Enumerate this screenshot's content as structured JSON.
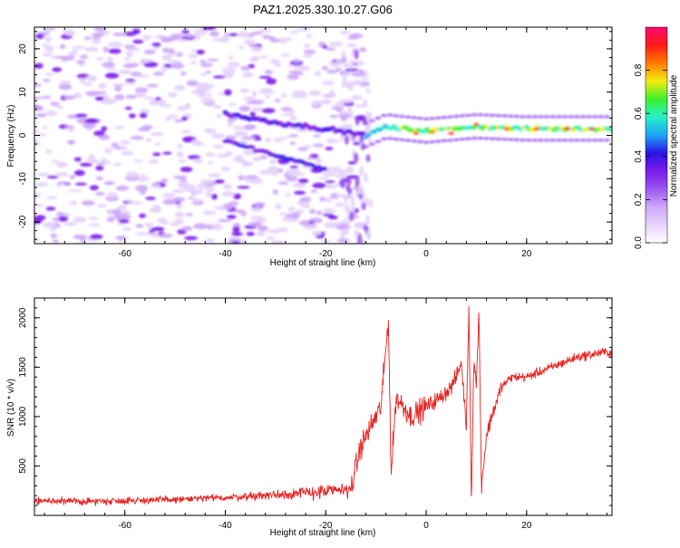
{
  "title": "PAZ1.2025.330.10.27.G06",
  "colors": {
    "snr_line": "#e8201e",
    "axis": "#000000",
    "colormap": [
      "#ffffff",
      "#e6d2fb",
      "#cda7f7",
      "#9b55f0",
      "#7a1aea",
      "#2a14e6",
      "#1ea6f5",
      "#26f0c8",
      "#3ff02b",
      "#f5ec12",
      "#ff7a00",
      "#ff1a1a",
      "#ff0a6e"
    ]
  },
  "chart_data": [
    {
      "type": "heatmap",
      "title": "",
      "xlabel": "Height of straight line (km)",
      "ylabel": "Frequency (Hz)",
      "xlim": [
        -78,
        37
      ],
      "ylim": [
        -25,
        25
      ],
      "x_ticks": [
        -60,
        -40,
        -20,
        0,
        20
      ],
      "y_ticks": [
        -20,
        -10,
        0,
        10,
        20
      ],
      "colorbar": {
        "label": "Normalized spectral amplitude",
        "range": [
          0,
          1
        ],
        "ticks": [
          "0.0",
          "0.2",
          "0.4",
          "0.6",
          "0.8"
        ]
      },
      "features": [
        {
          "name": "noise region",
          "x_range": [
            -78,
            -12
          ],
          "freq_range": [
            -25,
            25
          ],
          "amplitude": 0.15
        },
        {
          "name": "main branch",
          "points": [
            [
              -40,
              5
            ],
            [
              -30,
              3
            ],
            [
              -20,
              1.5
            ],
            [
              -12,
              0
            ],
            [
              -8,
              2
            ],
            [
              0,
              1
            ],
            [
              10,
              2
            ],
            [
              20,
              1.5
            ],
            [
              37,
              1.5
            ]
          ]
        },
        {
          "name": "secondary branch",
          "points": [
            [
              -40,
              -1
            ],
            [
              -32,
              -4
            ],
            [
              -25,
              -6
            ],
            [
              -20,
              -8
            ]
          ]
        }
      ]
    },
    {
      "type": "line",
      "title": "",
      "xlabel": "Height of straight line (km)",
      "ylabel": "SNR (10 * v/v)",
      "xlim": [
        -78,
        37
      ],
      "ylim": [
        0,
        2200
      ],
      "x_ticks": [
        -60,
        -40,
        -20,
        0,
        20
      ],
      "y_ticks": [
        500,
        1000,
        1500,
        2000
      ],
      "series": [
        {
          "name": "SNR",
          "x": [
            -78,
            -70,
            -60,
            -50,
            -40,
            -30,
            -20,
            -15,
            -13,
            -11,
            -9,
            -7.5,
            -7,
            -6,
            -3,
            0,
            3,
            5,
            6,
            7,
            8,
            8.5,
            9,
            9.5,
            10,
            10.5,
            11,
            12,
            13,
            15,
            17,
            20,
            25,
            30,
            35,
            37
          ],
          "values": [
            150,
            140,
            150,
            160,
            180,
            210,
            240,
            270,
            700,
            900,
            1100,
            2000,
            400,
            1200,
            1000,
            1100,
            1200,
            1300,
            1400,
            1550,
            900,
            2150,
            150,
            1600,
            1300,
            2100,
            300,
            800,
            1000,
            1300,
            1400,
            1400,
            1500,
            1600,
            1650,
            1650
          ]
        }
      ]
    }
  ]
}
